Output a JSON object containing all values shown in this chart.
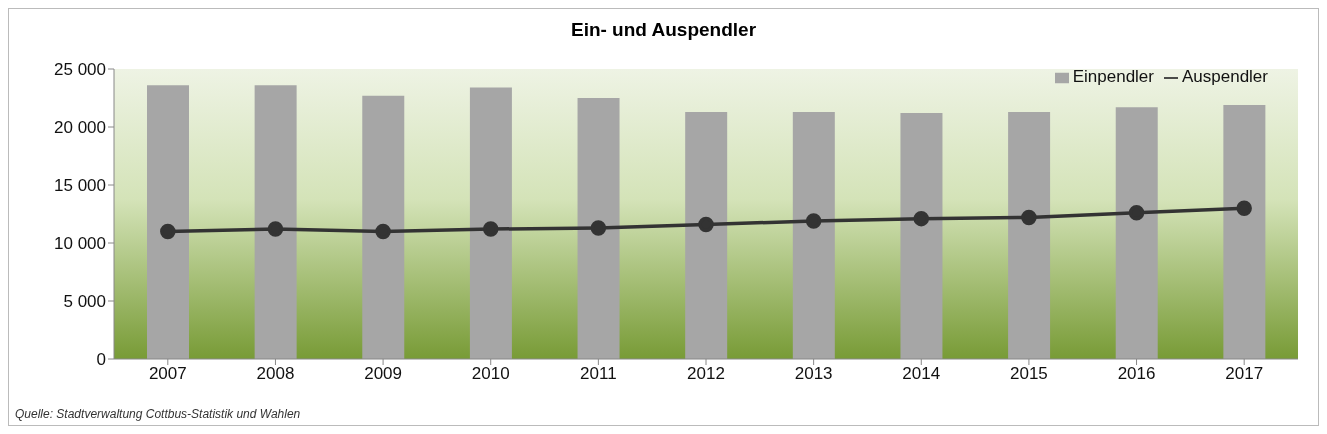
{
  "chart_data": {
    "type": "bar",
    "title": "Ein- und Auspendler",
    "categories": [
      "2007",
      "2008",
      "2009",
      "2010",
      "2011",
      "2012",
      "2013",
      "2014",
      "2015",
      "2016",
      "2017"
    ],
    "series": [
      {
        "name": "Einpendler",
        "color": "#a6a6a6",
        "values": [
          23600,
          23600,
          22700,
          23400,
          22500,
          21300,
          21300,
          21200,
          21300,
          21700,
          21900
        ]
      },
      {
        "name": "Auspendler",
        "type": "line",
        "color": "#333333",
        "marker": "circle",
        "values": [
          11000,
          11200,
          11000,
          11200,
          11300,
          11600,
          11900,
          12100,
          12200,
          12600,
          13000
        ]
      }
    ],
    "ylim": [
      0,
      25000
    ],
    "yticks": [
      0,
      5000,
      10000,
      15000,
      20000,
      25000
    ],
    "legend": "top right",
    "annotations": [
      "Quelle: Stadtverwaltung Cottbus-Statistik und Wahlen"
    ]
  }
}
